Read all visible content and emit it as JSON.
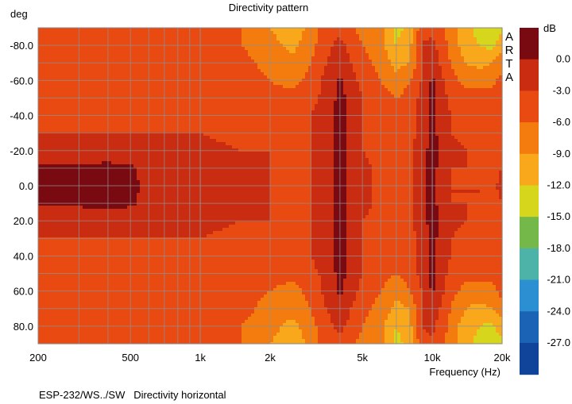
{
  "chart_data": {
    "type": "heatmap",
    "title": "Directivity pattern",
    "ylabel": "deg",
    "xlabel": "Frequency (Hz)",
    "footer": "ESP-232/WS../SW   Directivity horizontal",
    "watermark": "ARTA",
    "x_scale": "log",
    "xlim": [
      200,
      20000
    ],
    "ylim": [
      -90,
      90
    ],
    "grid": true,
    "x_ticks": [
      {
        "value": 200,
        "label": "200"
      },
      {
        "value": 500,
        "label": "500"
      },
      {
        "value": 1000,
        "label": "1k"
      },
      {
        "value": 2000,
        "label": "2k"
      },
      {
        "value": 5000,
        "label": "5k"
      },
      {
        "value": 10000,
        "label": "10k"
      },
      {
        "value": 20000,
        "label": "20k"
      }
    ],
    "y_ticks": [
      {
        "value": -80,
        "label": "-80.0"
      },
      {
        "value": -60,
        "label": "-60.0"
      },
      {
        "value": -40,
        "label": "-40.0"
      },
      {
        "value": -20,
        "label": "-20.0"
      },
      {
        "value": 0,
        "label": "0.0"
      },
      {
        "value": 20,
        "label": "20.0"
      },
      {
        "value": 40,
        "label": "40.0"
      },
      {
        "value": 60,
        "label": "60.0"
      },
      {
        "value": 80,
        "label": "80.0"
      }
    ],
    "colorbar": {
      "title": "dB",
      "colors": [
        "#7a0a12",
        "#c92c10",
        "#e94a12",
        "#f47c0f",
        "#f9a81c",
        "#d6d61d",
        "#74b84a",
        "#4db3a8",
        "#2b8fd2",
        "#1a63b5",
        "#10449a"
      ],
      "labels": [
        "0.0",
        "-3.0",
        "-6.0",
        "-9.0",
        "-12.0",
        "-15.0",
        "-18.0",
        "-21.0",
        "-24.0",
        "-27.0"
      ]
    },
    "angles": [
      -90,
      -80,
      -70,
      -60,
      -50,
      -40,
      -30,
      -20,
      -10,
      0,
      10,
      20,
      30,
      40,
      50,
      60,
      70,
      80,
      90
    ],
    "frequencies": [
      200,
      300,
      400,
      500,
      700,
      1000,
      1500,
      2000,
      2500,
      3000,
      3500,
      4000,
      5000,
      6000,
      7000,
      8000,
      9000,
      10000,
      12000,
      14000,
      16000,
      18000,
      20000
    ],
    "values_db": [
      [
        -4,
        -4,
        -4,
        -4,
        -4.5,
        -5,
        -6,
        -9,
        -11,
        -8,
        -4,
        -4,
        -7,
        -8,
        -13,
        -11,
        -4,
        -4,
        -7,
        -11,
        -13,
        -14,
        -13
      ],
      [
        -4,
        -4,
        -4,
        -4,
        -4.5,
        -5,
        -6,
        -8,
        -10,
        -7,
        -4,
        -2,
        -6,
        -8,
        -12,
        -10,
        -3,
        -2,
        -7,
        -11,
        -12,
        -13,
        -10
      ],
      [
        -4,
        -4,
        -4,
        -4,
        -4.5,
        -4.5,
        -5,
        -7,
        -8,
        -6,
        -3,
        -1,
        -5,
        -7,
        -10,
        -9,
        -3,
        -1,
        -6,
        -9,
        -10,
        -9,
        -7
      ],
      [
        -4,
        -4,
        -4,
        -4,
        -4,
        -4,
        -5,
        -6,
        -7,
        -5,
        -2,
        0.5,
        -4,
        -6,
        -8,
        -6,
        -3,
        0.5,
        -5,
        -7,
        -7,
        -7,
        -5
      ],
      [
        -4,
        -4,
        -4,
        -4,
        -4,
        -4,
        -4,
        -5,
        -5,
        -4,
        -2,
        1,
        -3,
        -5,
        -6,
        -5,
        -2,
        1,
        -4,
        -5,
        -5,
        -5,
        -4
      ],
      [
        -3.5,
        -3.5,
        -3.5,
        -3.5,
        -3.5,
        -3.5,
        -4,
        -4,
        -4,
        -3,
        -1,
        1,
        -3,
        -4,
        -5,
        -4,
        -2,
        1,
        -3,
        -4,
        -4,
        -4,
        -4
      ],
      [
        -3,
        -3,
        -3,
        -3,
        -3,
        -3,
        -3.5,
        -4,
        -4,
        -3,
        -1,
        1,
        -3,
        -4,
        -4,
        -4,
        -2,
        1,
        -3,
        -4,
        -3.5,
        -4,
        -4
      ],
      [
        -2,
        -2,
        -2,
        -2,
        -2,
        -2.5,
        -3,
        -3,
        -3.5,
        -3,
        -1,
        1,
        -3,
        -3.5,
        -4,
        -4,
        -1,
        1,
        -2,
        -3,
        -3,
        -4,
        -3
      ],
      [
        0.5,
        0.5,
        1,
        0.5,
        -2,
        -2,
        -2.5,
        -3,
        -3.5,
        -3,
        -1,
        1,
        -2.5,
        -3.5,
        -4,
        -4,
        -1,
        1,
        -3,
        -3,
        -3,
        -4,
        -3
      ],
      [
        0.5,
        0.5,
        0.5,
        0.5,
        -1.5,
        -2,
        -2.5,
        -3,
        -3.5,
        -3,
        -1,
        1,
        -2.5,
        -3.5,
        -4,
        -4,
        -1,
        1,
        -3,
        -3,
        -3,
        -4,
        -2
      ],
      [
        0.5,
        0.5,
        1,
        0.5,
        -2,
        -2,
        -2.5,
        -3,
        -3.5,
        -3,
        -1,
        1,
        -2.5,
        -3.5,
        -4,
        -4,
        -1,
        1,
        -3,
        -3,
        -3,
        -4,
        -3
      ],
      [
        -2,
        -2,
        -2,
        -2,
        -2,
        -2.5,
        -3,
        -3,
        -3.5,
        -3,
        -1,
        1,
        -3,
        -3.5,
        -4,
        -4,
        -1,
        1,
        -2,
        -3,
        -3,
        -4,
        -3
      ],
      [
        -3,
        -3,
        -3,
        -3,
        -3,
        -3,
        -3.5,
        -4,
        -4,
        -3,
        -1,
        1,
        -3,
        -4,
        -4,
        -4,
        -2,
        1,
        -3,
        -4,
        -3.5,
        -4,
        -4
      ],
      [
        -3.5,
        -3.5,
        -3.5,
        -3.5,
        -3.5,
        -3.5,
        -4,
        -4,
        -4,
        -3,
        -1,
        1,
        -3,
        -4,
        -5,
        -4,
        -2,
        1,
        -3,
        -4,
        -4,
        -4,
        -4
      ],
      [
        -4,
        -4,
        -4,
        -4,
        -4,
        -4,
        -4,
        -5,
        -5,
        -4,
        -2,
        1,
        -3,
        -5,
        -6,
        -5,
        -2,
        1,
        -4,
        -5,
        -5,
        -5,
        -4
      ],
      [
        -4,
        -4,
        -4,
        -4,
        -4,
        -4,
        -5,
        -6,
        -7,
        -5,
        -2,
        0.5,
        -4,
        -6,
        -8,
        -6,
        -3,
        0.5,
        -5,
        -7,
        -7,
        -7,
        -5
      ],
      [
        -4,
        -4,
        -4,
        -4,
        -4.5,
        -4.5,
        -5,
        -7,
        -8,
        -6,
        -3,
        -1,
        -5,
        -7,
        -10,
        -9,
        -3,
        -1,
        -6,
        -9,
        -10,
        -9,
        -7
      ],
      [
        -4,
        -4,
        -4,
        -4,
        -4.5,
        -5,
        -6,
        -8,
        -10,
        -7,
        -4,
        -2,
        -6,
        -8,
        -12,
        -10,
        -3,
        -2,
        -7,
        -11,
        -12,
        -13,
        -10
      ],
      [
        -4,
        -4,
        -4,
        -4,
        -4.5,
        -5,
        -6,
        -9,
        -11,
        -8,
        -4,
        -4,
        -7,
        -8,
        -13,
        -11,
        -4,
        -4,
        -7,
        -11,
        -13,
        -14,
        -13
      ]
    ]
  }
}
